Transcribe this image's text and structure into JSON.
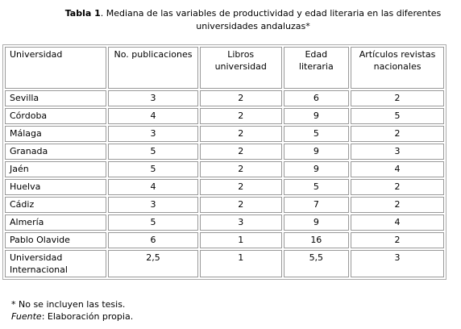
{
  "title": {
    "label": "Tabla 1",
    "text": ". Mediana de las variables de productividad y edad literaria en las diferentes universidades andaluzas*"
  },
  "table": {
    "header": [
      "Universidad",
      "No. publicaciones",
      "Libros universidad",
      "Edad literaria",
      "Artículos revistas nacionales"
    ],
    "rows": [
      [
        "Sevilla",
        "3",
        "2",
        "6",
        "2"
      ],
      [
        "Córdoba",
        "4",
        "2",
        "9",
        "5"
      ],
      [
        "Málaga",
        "3",
        "2",
        "5",
        "2"
      ],
      [
        "Granada",
        "5",
        "2",
        "9",
        "3"
      ],
      [
        "Jaén",
        "5",
        "2",
        "9",
        "4"
      ],
      [
        "Huelva",
        "4",
        "2",
        "5",
        "2"
      ],
      [
        "Cádiz",
        "3",
        "2",
        "7",
        "2"
      ],
      [
        "Almería",
        "5",
        "3",
        "9",
        "4"
      ],
      [
        "Pablo Olavide",
        "6",
        "1",
        "16",
        "2"
      ],
      [
        "Universidad Internacional",
        "2,5",
        "1",
        "5,5",
        "3"
      ]
    ]
  },
  "notes": [
    "* No se incluyen las tesis."
  ],
  "source": {
    "label": "Fuente",
    "text": ": Elaboración propia."
  }
}
